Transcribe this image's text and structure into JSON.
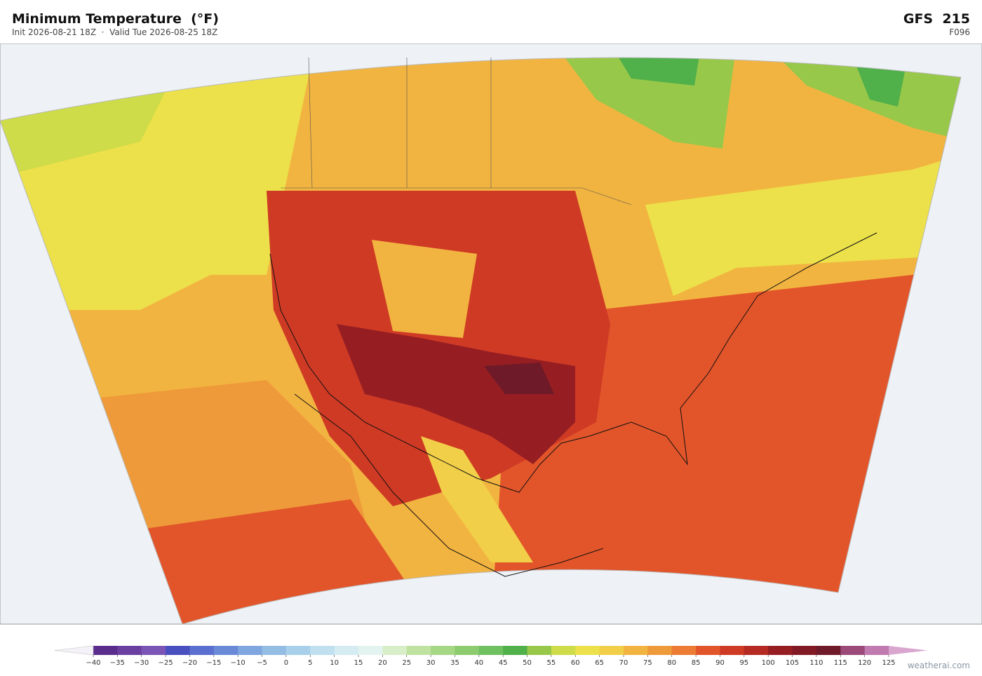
{
  "header": {
    "title": "Minimum Temperature  (°F)",
    "subtitle": "Init 2026-08-21 18Z  ·  Valid Tue 2026-08-25 18Z",
    "model": "GFS  215",
    "forecast_hour": "F096"
  },
  "colorbar": {
    "ticks": [
      {
        "value": -40,
        "label": "−40"
      },
      {
        "value": -35,
        "label": "−35"
      },
      {
        "value": -30,
        "label": "−30"
      },
      {
        "value": -25,
        "label": "−25"
      },
      {
        "value": -20,
        "label": "−20"
      },
      {
        "value": -15,
        "label": "−15"
      },
      {
        "value": -10,
        "label": "−10"
      },
      {
        "value": -5,
        "label": "−5"
      },
      0,
      5,
      10,
      15,
      20,
      25,
      30,
      35,
      40,
      45,
      50,
      55,
      60,
      65,
      70,
      75,
      80,
      85,
      90,
      95,
      100,
      105,
      110,
      115,
      120,
      125
    ],
    "colors": [
      "#5a2d8c",
      "#6b3fa0",
      "#7a55b5",
      "#4a4fc0",
      "#5a6fd0",
      "#6a8ad8",
      "#7fa6df",
      "#93bde3",
      "#a9d0ea",
      "#c0e0f0",
      "#d5ecf3",
      "#e3f3ef",
      "#d8eec8",
      "#bfe2a0",
      "#a5d785",
      "#8ccb6e",
      "#6fc060",
      "#50b04a",
      "#98c84a",
      "#cddc48",
      "#ece14a",
      "#f2cf48",
      "#f2b440",
      "#ee9a3a",
      "#ec7c34",
      "#e2552a",
      "#cf3a25",
      "#b52a22",
      "#961e22",
      "#821a25",
      "#6e1a28",
      "#9b4a7a",
      "#c07aaf"
    ],
    "extend_colors": [
      "#f4f2f8",
      "#d8a6cf"
    ]
  },
  "footer": {
    "credit": "weatherai.com"
  }
}
